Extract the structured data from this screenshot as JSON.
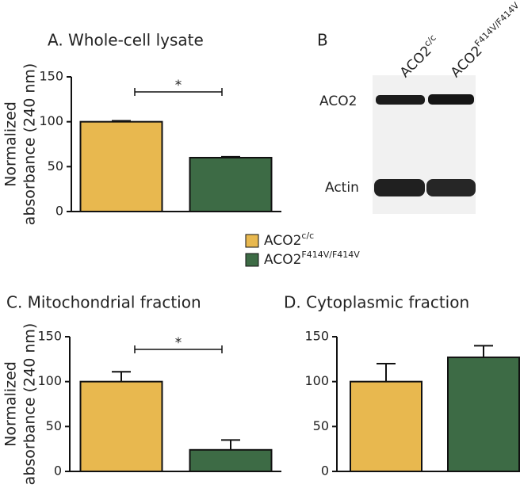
{
  "chart_data": [
    {
      "type": "bar",
      "title": "A. Whole-cell lysate",
      "ylabel": [
        "Normalized",
        "absorbance (240 nm)"
      ],
      "ylim": [
        0,
        150
      ],
      "yticks": [
        0,
        50,
        100,
        150
      ],
      "series": [
        {
          "name": "ACO2",
          "superscript": "c/c",
          "color": "#e8b84f",
          "values": [
            100
          ],
          "errors": [
            1
          ]
        },
        {
          "name": "ACO2",
          "superscript": "F414V/F414V",
          "color": "#3d6b45",
          "values": [
            60
          ],
          "errors": [
            1
          ]
        }
      ],
      "significance": "*"
    },
    {
      "type": "bar",
      "title": "C. Mitochondrial fraction",
      "ylabel": [
        "Normalized",
        "absorbance (240 nm)"
      ],
      "ylim": [
        0,
        150
      ],
      "yticks": [
        0,
        50,
        100,
        150
      ],
      "series": [
        {
          "name": "ACO2",
          "superscript": "c/c",
          "color": "#e8b84f",
          "values": [
            100
          ],
          "errors": [
            11
          ]
        },
        {
          "name": "ACO2",
          "superscript": "F414V/F414V",
          "color": "#3d6b45",
          "values": [
            24
          ],
          "errors": [
            11
          ]
        }
      ],
      "significance": "*"
    },
    {
      "type": "bar",
      "title": "D. Cytoplasmic fraction",
      "ylim": [
        0,
        150
      ],
      "yticks": [
        0,
        50,
        100,
        150
      ],
      "series": [
        {
          "name": "ACO2",
          "superscript": "c/c",
          "color": "#e8b84f",
          "values": [
            100
          ],
          "errors": [
            20
          ]
        },
        {
          "name": "ACO2",
          "superscript": "F414V/F414V",
          "color": "#3d6b45",
          "values": [
            127
          ],
          "errors": [
            13
          ]
        }
      ]
    }
  ],
  "blot": {
    "title": "B",
    "lanes": [
      {
        "name": "ACO2",
        "superscript": "c/c"
      },
      {
        "name": "ACO2",
        "superscript": "F414V/F414V"
      }
    ],
    "rows": [
      "ACO2",
      "Actin"
    ]
  }
}
